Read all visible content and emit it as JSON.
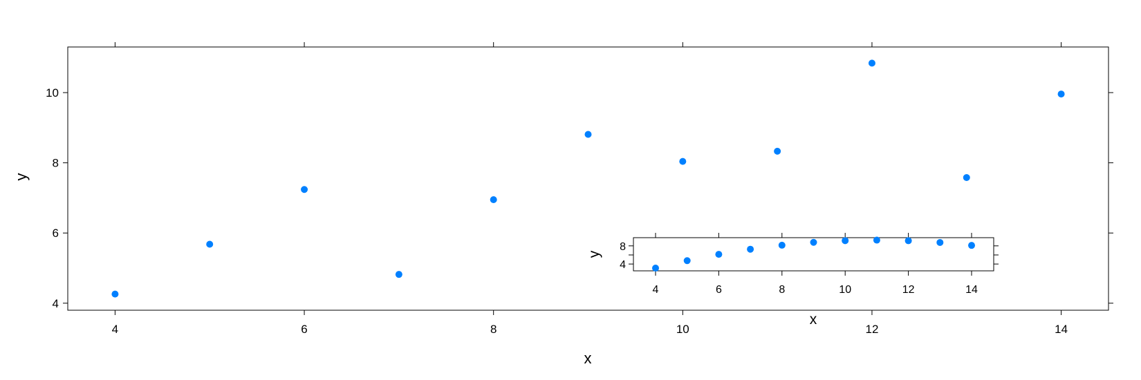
{
  "chart_data": [
    {
      "type": "scatter",
      "title": "",
      "xlabel": "x",
      "ylabel": "y",
      "xlim": [
        3.5,
        14.5
      ],
      "ylim": [
        3.8,
        11.3
      ],
      "xticks": [
        4,
        6,
        8,
        10,
        12,
        14
      ],
      "yticks": [
        4,
        6,
        8,
        10
      ],
      "grid": false,
      "point_color": "#0080ff",
      "points": [
        {
          "x": 4,
          "y": 4.26
        },
        {
          "x": 5,
          "y": 5.68
        },
        {
          "x": 6,
          "y": 7.24
        },
        {
          "x": 7,
          "y": 4.82
        },
        {
          "x": 8,
          "y": 6.95
        },
        {
          "x": 9,
          "y": 8.81
        },
        {
          "x": 10,
          "y": 8.04
        },
        {
          "x": 11,
          "y": 8.33
        },
        {
          "x": 12,
          "y": 10.84
        },
        {
          "x": 13,
          "y": 7.58
        },
        {
          "x": 14,
          "y": 9.96
        }
      ]
    },
    {
      "type": "scatter",
      "title": "",
      "xlabel": "x",
      "ylabel": "y",
      "xlim": [
        3.3,
        14.7
      ],
      "ylim": [
        2.5,
        9.8
      ],
      "xticks": [
        4,
        6,
        8,
        10,
        12,
        14
      ],
      "yticks": [
        4,
        6,
        8
      ],
      "ytick_labels": [
        "4",
        "",
        "8"
      ],
      "grid": false,
      "point_color": "#0080ff",
      "points": [
        {
          "x": 4,
          "y": 3.1
        },
        {
          "x": 5,
          "y": 4.74
        },
        {
          "x": 6,
          "y": 6.13
        },
        {
          "x": 7,
          "y": 7.26
        },
        {
          "x": 8,
          "y": 8.14
        },
        {
          "x": 9,
          "y": 8.77
        },
        {
          "x": 10,
          "y": 9.14
        },
        {
          "x": 11,
          "y": 9.26
        },
        {
          "x": 12,
          "y": 9.13
        },
        {
          "x": 13,
          "y": 8.74
        },
        {
          "x": 14,
          "y": 8.1
        }
      ]
    }
  ]
}
